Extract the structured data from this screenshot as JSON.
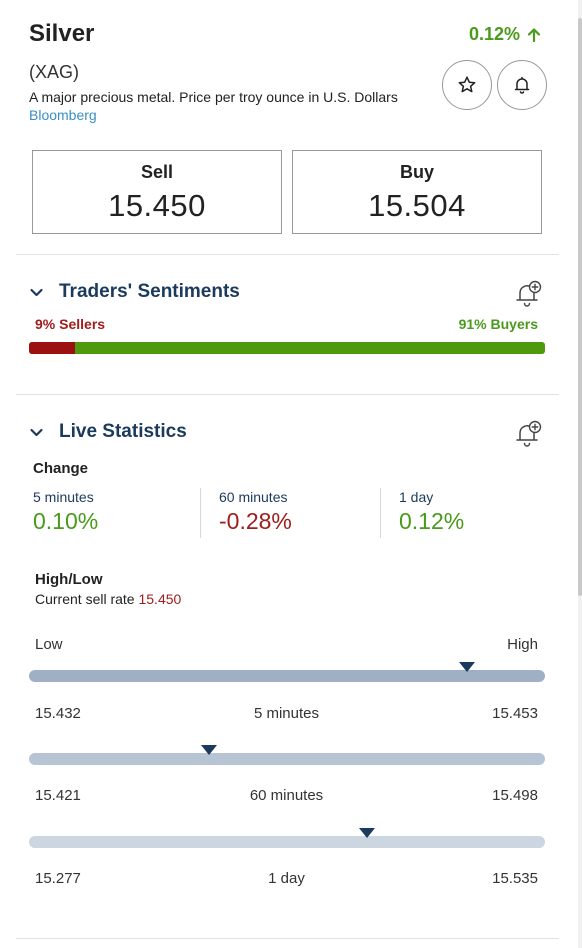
{
  "instrument": {
    "name": "Silver",
    "symbol": "(XAG)",
    "description": "A major precious metal. Price per troy ounce in U.S. Dollars",
    "source": "Bloomberg",
    "change": "0.12%"
  },
  "icons": {
    "change_arrow": "arrow-up-icon",
    "favorite": "star-icon",
    "alert": "bell-icon",
    "add_alert": "bell-plus-icon",
    "collapse": "chevron-down-icon"
  },
  "prices": {
    "sell_label": "Sell",
    "sell_value": "15.450",
    "buy_label": "Buy",
    "buy_value": "15.504"
  },
  "sentiment": {
    "title": "Traders' Sentiments",
    "sellers_text": "9% Sellers",
    "buyers_text": "91% Buyers",
    "sellers_pct": 9,
    "buyers_pct": 91
  },
  "live_stats": {
    "title": "Live Statistics",
    "change_label": "Change",
    "periods": [
      {
        "label": "5 minutes",
        "value": "0.10%",
        "trend": "pos"
      },
      {
        "label": "60 minutes",
        "value": "-0.28%",
        "trend": "neg"
      },
      {
        "label": "1 day",
        "value": "0.12%",
        "trend": "pos"
      }
    ],
    "highlow_label": "High/Low",
    "current_rate_prefix": "Current sell rate",
    "current_rate": "15.450",
    "low_label": "Low",
    "high_label": "High",
    "ranges": [
      {
        "period": "5 minutes",
        "low": "15.432",
        "high": "15.453",
        "marker_pct": 0.848
      },
      {
        "period": "60 minutes",
        "low": "15.421",
        "high": "15.498",
        "marker_pct": 0.349
      },
      {
        "period": "1 day",
        "low": "15.277",
        "high": "15.535",
        "marker_pct": 0.655
      }
    ]
  },
  "colors": {
    "positive": "#4a9a1c",
    "negative": "#a01d1d",
    "heading": "#1b3a5c",
    "link": "#3a8fc4",
    "buyers_bar": "#4f9a0c",
    "sellers_bar": "#9b1010",
    "range_5m": "#9fb0c4",
    "range_60m": "#b7c4d3",
    "range_1d": "#ccd6e1",
    "marker": "#1b3a5c"
  }
}
